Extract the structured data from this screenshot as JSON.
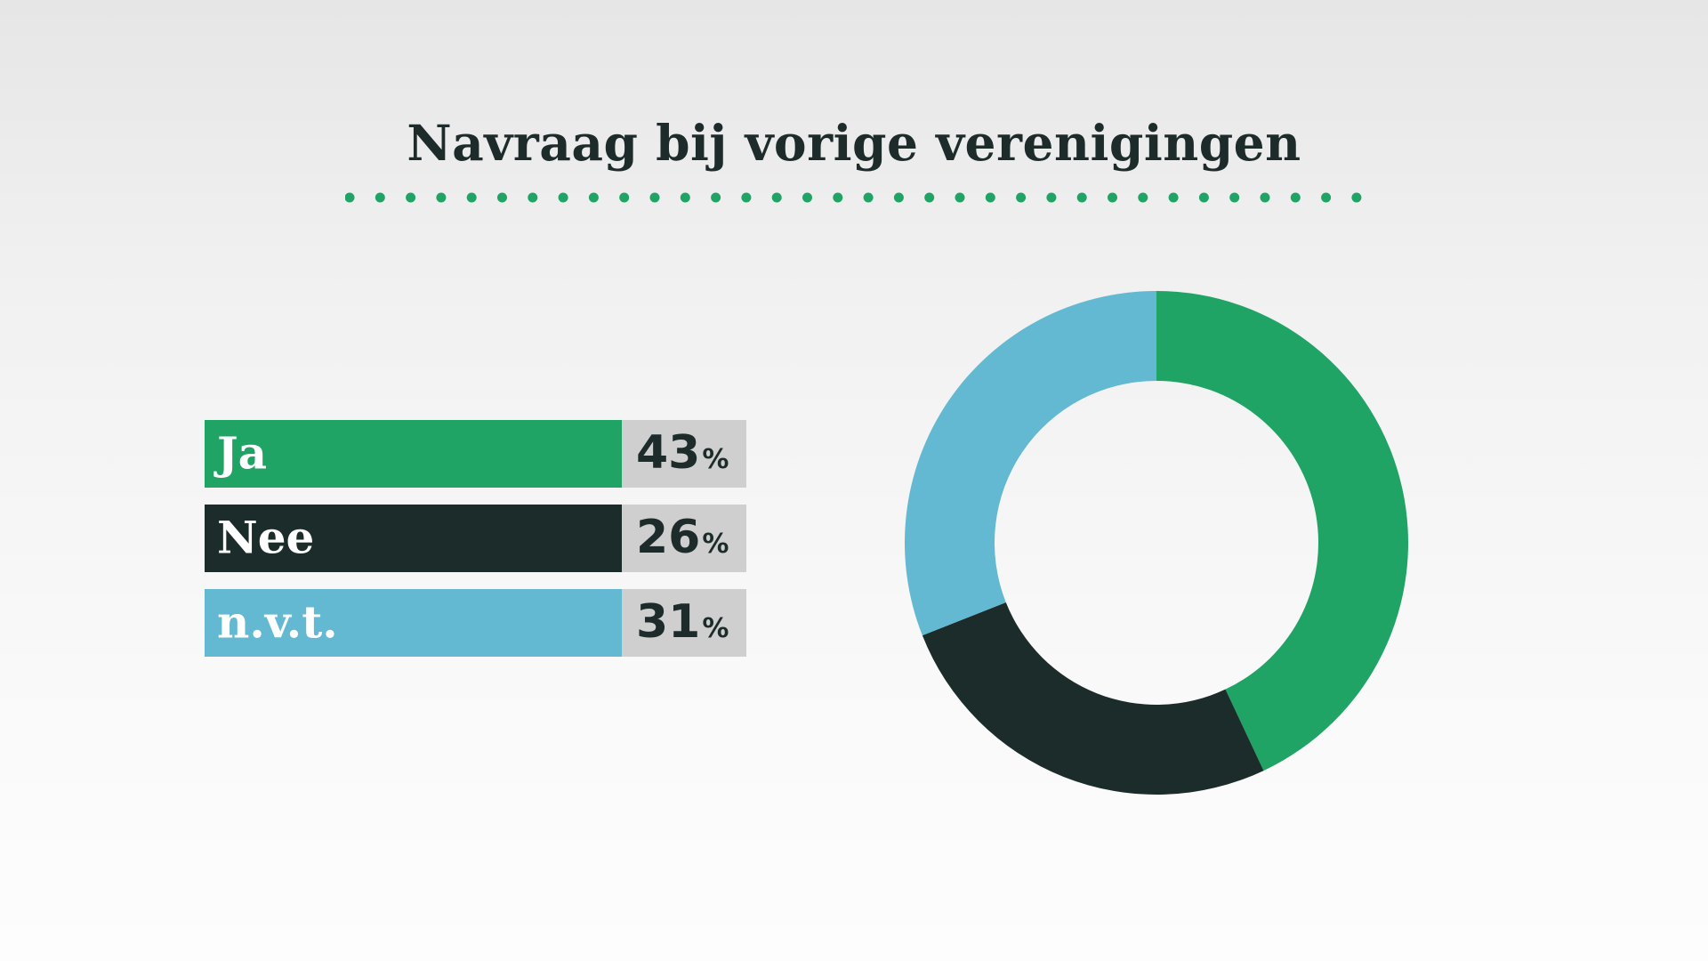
{
  "chart_data": {
    "type": "pie",
    "title": "Navraag bij vorige verenigingen",
    "categories": [
      "Ja",
      "Nee",
      "n.v.t."
    ],
    "values": [
      43,
      26,
      31
    ],
    "value_suffix": "%",
    "colors": [
      "#1fa465",
      "#1c2c2b",
      "#63b9d1"
    ],
    "donut": true
  },
  "theme": {
    "title_color": "#1d2c2b",
    "divider_color": "#1fa465",
    "value_box_color": "#cfcfcf"
  }
}
